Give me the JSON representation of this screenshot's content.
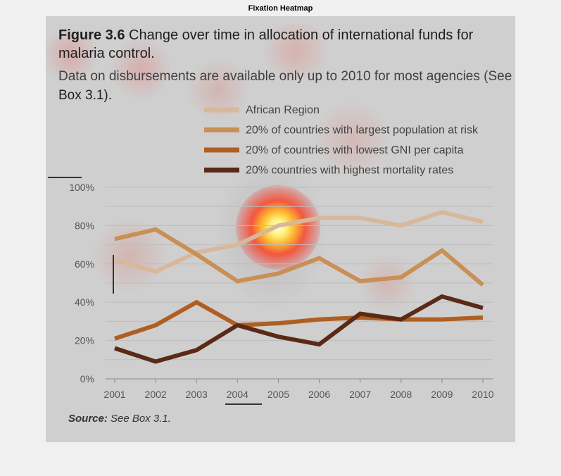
{
  "window": {
    "title": "Fixation Heatmap"
  },
  "figure": {
    "label": "Figure 3.6",
    "title": "Change over time in allocation of international funds for malaria control.",
    "subtitle_main": "Data on disbursements are available only up to 2010 for most agencies (See",
    "subtitle_box": "Box 3.1).",
    "source_label": "Source:",
    "source_text": "See Box 3.1."
  },
  "colors": {
    "panel_bg": "#cfcfcf",
    "african_region": "#d8b89a",
    "largest_population": "#c98f55",
    "lowest_gni": "#b05e22",
    "highest_mortality": "#5a2a17",
    "heat_center": "#fff7a0",
    "heat_mid": "#ff3b1f"
  },
  "chart_data": {
    "type": "line",
    "x": [
      "2001",
      "2002",
      "2003",
      "2004",
      "2005",
      "2006",
      "2007",
      "2008",
      "2009",
      "2010"
    ],
    "y_ticks": [
      "0%",
      "20%",
      "40%",
      "60%",
      "80%",
      "100%"
    ],
    "ylim": [
      0,
      100
    ],
    "grid": true,
    "legend_position": "top",
    "series": [
      {
        "name": "African Region",
        "color_key": "african_region",
        "values": [
          62,
          56,
          66,
          70,
          80,
          84,
          84,
          80,
          87,
          82
        ]
      },
      {
        "name": "20% of countries with largest population at risk",
        "color_key": "largest_population",
        "values": [
          73,
          78,
          65,
          51,
          55,
          63,
          51,
          53,
          67,
          49
        ]
      },
      {
        "name": "20% of countries with lowest GNI per capita",
        "color_key": "lowest_gni",
        "values": [
          21,
          28,
          40,
          28,
          29,
          31,
          32,
          31,
          31,
          32
        ]
      },
      {
        "name": "20% countries with highest mortality rates",
        "color_key": "highest_mortality",
        "values": [
          16,
          9,
          15,
          28,
          22,
          18,
          34,
          31,
          43,
          37
        ]
      }
    ]
  }
}
